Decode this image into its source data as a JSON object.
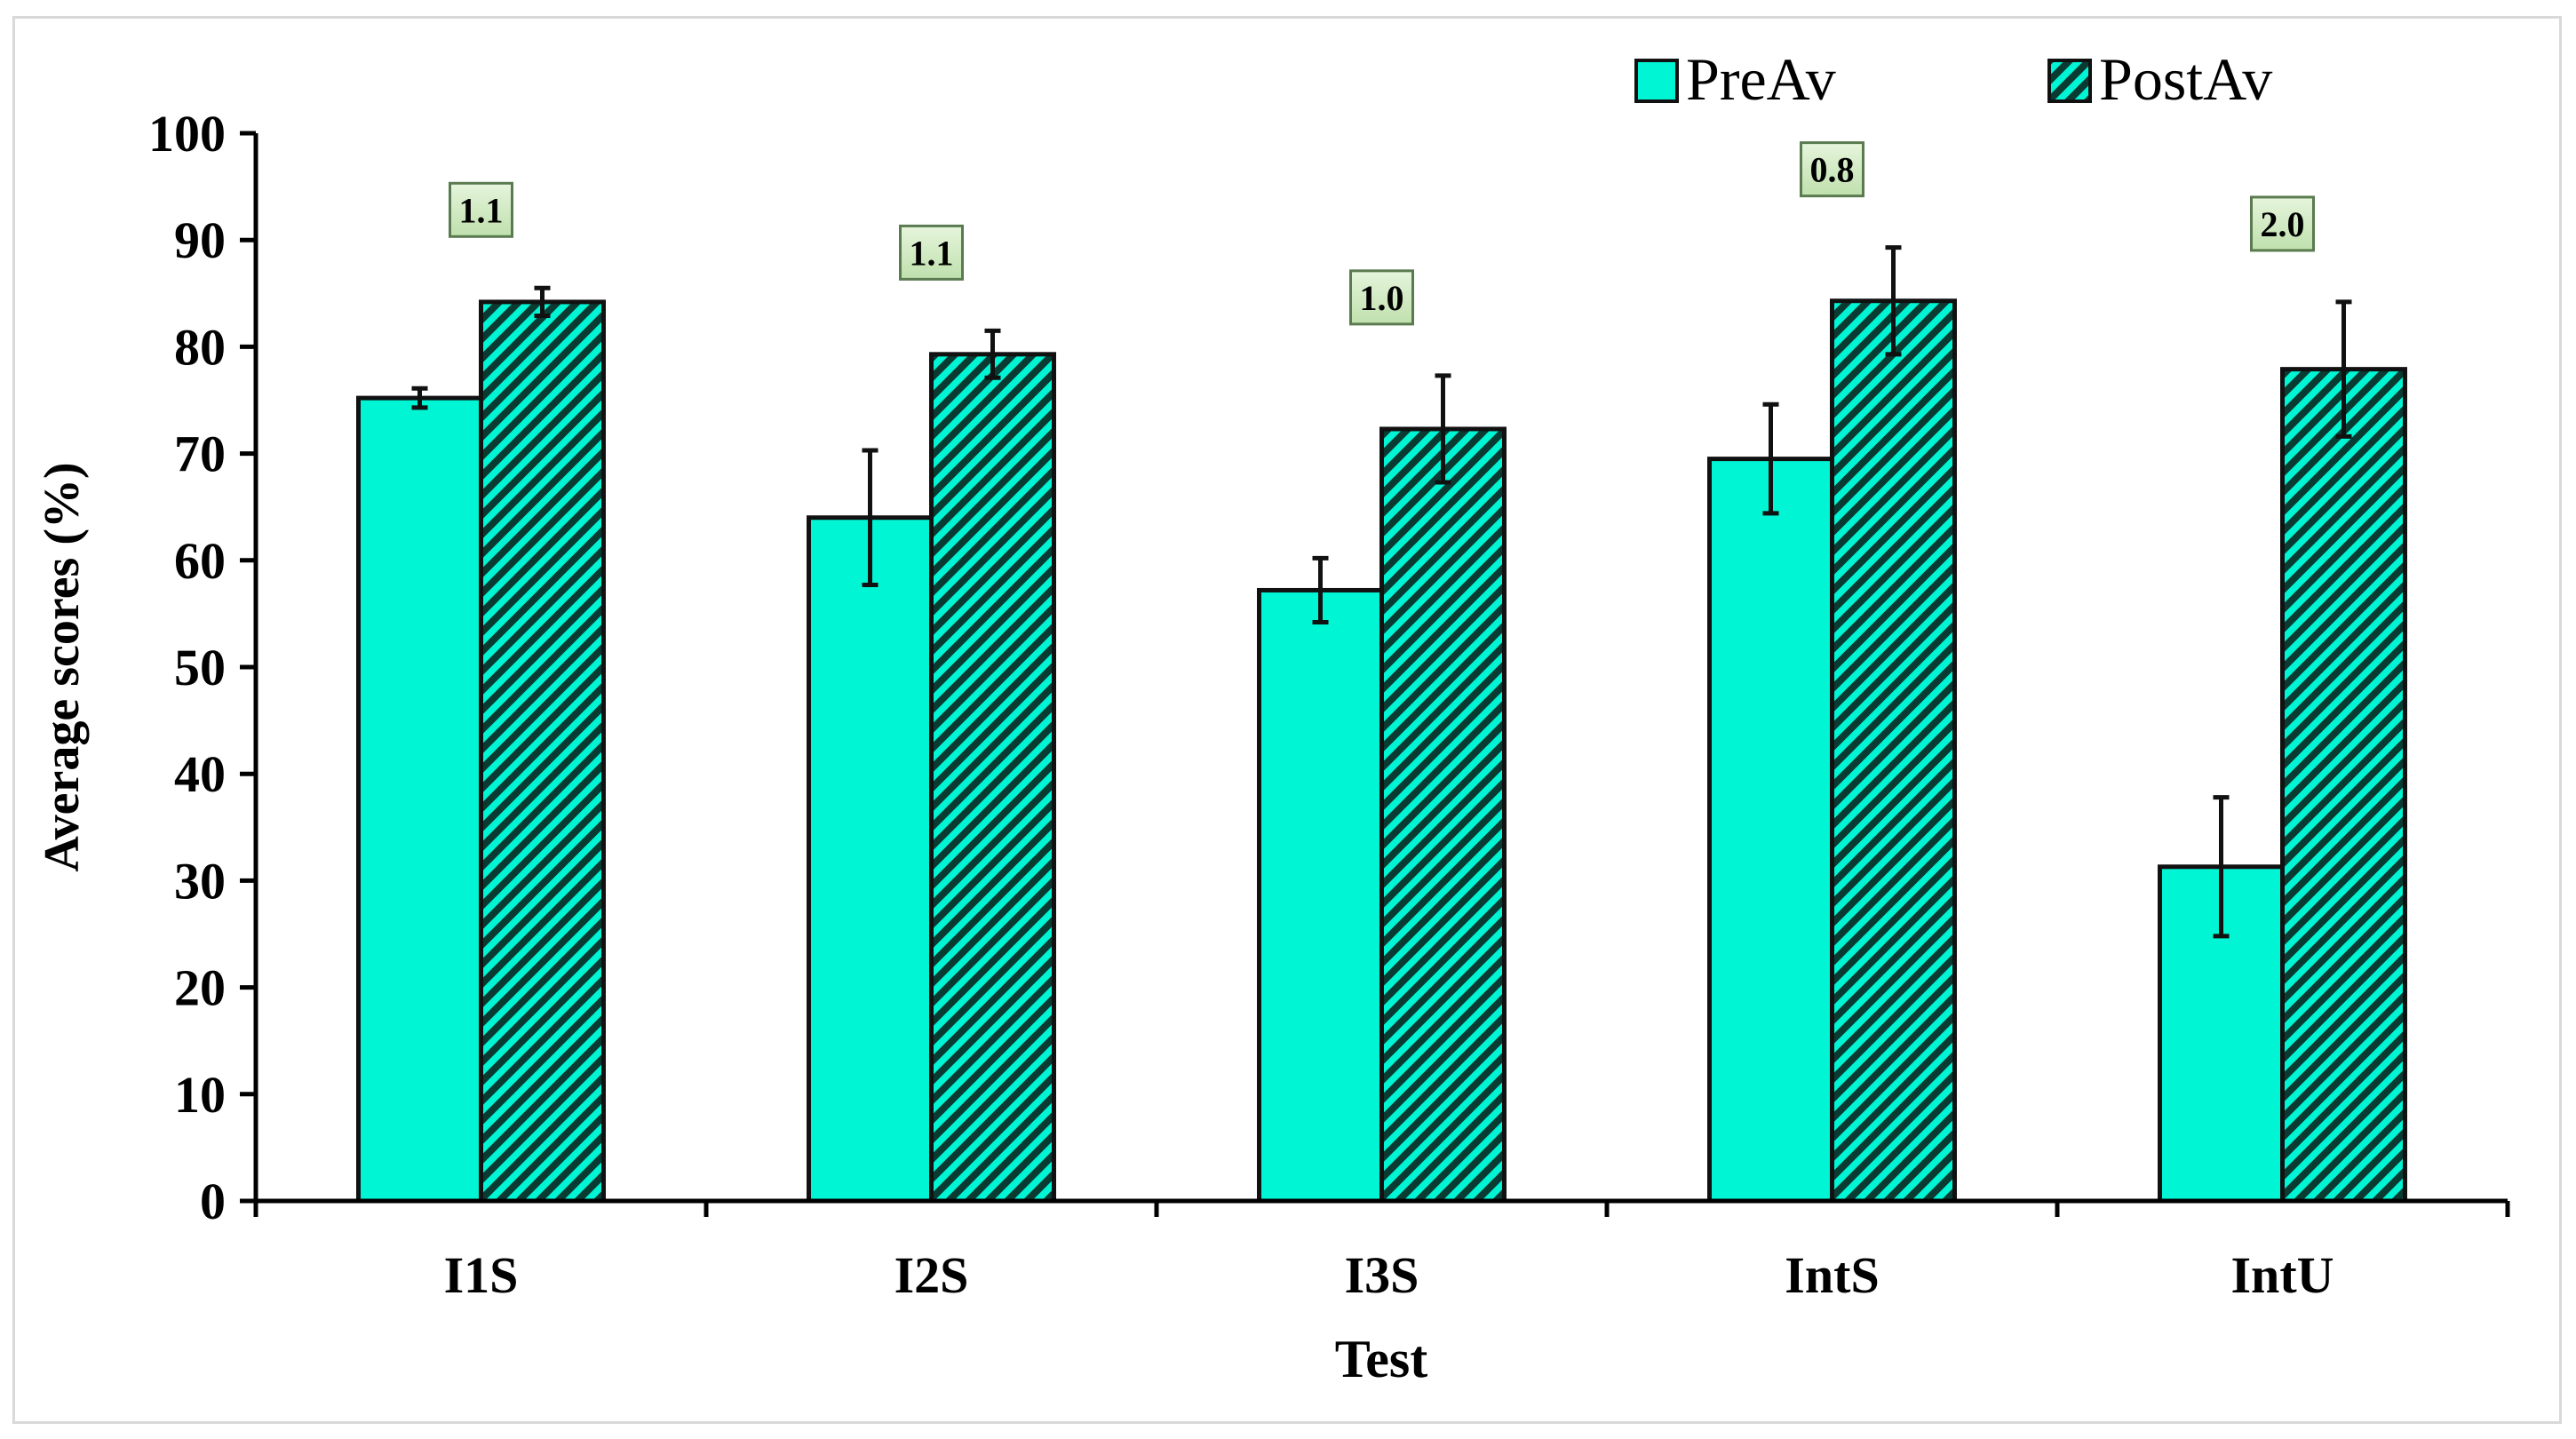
{
  "chart_data": {
    "type": "bar",
    "title": "",
    "xlabel": "Test",
    "ylabel": "Average scores (%)",
    "ylim": [
      0,
      100
    ],
    "yticks": [
      "0",
      "10",
      "20",
      "30",
      "40",
      "50",
      "60",
      "70",
      "80",
      "90",
      "100"
    ],
    "categories": [
      "I1S",
      "I2S",
      "I3S",
      "IntS",
      "IntU"
    ],
    "series": [
      {
        "name": "PreAv",
        "pattern": "solid",
        "values": [
          75.2,
          64.0,
          57.2,
          69.5,
          31.3
        ],
        "errors": [
          0.9,
          6.3,
          3.0,
          5.1,
          6.5
        ]
      },
      {
        "name": "PostAv",
        "pattern": "hatched",
        "values": [
          84.2,
          79.3,
          72.3,
          84.3,
          77.9
        ],
        "errors": [
          1.3,
          2.2,
          5.0,
          5.0,
          6.3
        ]
      }
    ],
    "annotations": [
      "1.1",
      "1.1",
      "1.0",
      "0.8",
      "2.0"
    ],
    "legend_position": "top-right",
    "grid": false,
    "colors": {
      "bar_fill": "#00f5d4",
      "hatch": "#0a3b33",
      "bar_edge": "#111111",
      "annotation_fill": "#d3ebc4",
      "annotation_edge": "#5a7a50"
    }
  }
}
